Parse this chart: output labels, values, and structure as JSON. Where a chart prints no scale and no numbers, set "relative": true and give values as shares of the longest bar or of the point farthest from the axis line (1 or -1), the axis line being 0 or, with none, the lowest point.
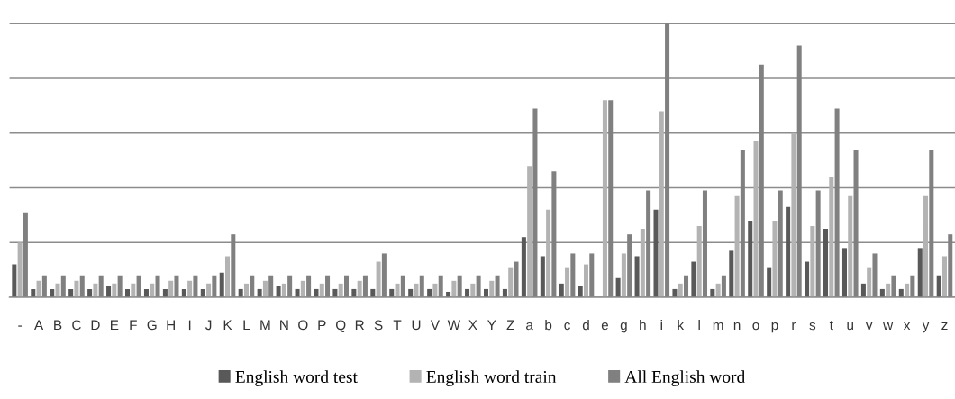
{
  "chart_data": {
    "type": "bar",
    "relative": true,
    "grid": "y",
    "legend": "bottom",
    "categories": [
      "-",
      "A",
      "B",
      "C",
      "D",
      "E",
      "F",
      "G",
      "H",
      "I",
      "J",
      "K",
      "L",
      "M",
      "N",
      "O",
      "P",
      "Q",
      "R",
      "S",
      "T",
      "U",
      "V",
      "W",
      "X",
      "Y",
      "Z",
      "a",
      "b",
      "c",
      "d",
      "e",
      "g",
      "h",
      "i",
      "k",
      "l",
      "m",
      "n",
      "o",
      "p",
      "r",
      "s",
      "t",
      "u",
      "v",
      "w",
      "x",
      "y",
      "z"
    ],
    "series": [
      {
        "name": "English word test",
        "color": "#595959",
        "values": [
          0.12,
          0.03,
          0.03,
          0.03,
          0.03,
          0.04,
          0.03,
          0.03,
          0.03,
          0.03,
          0.03,
          0.09,
          0.03,
          0.03,
          0.04,
          0.03,
          0.03,
          0.03,
          0.03,
          0.03,
          0.03,
          0.03,
          0.03,
          0.02,
          0.03,
          0.03,
          0.03,
          0.22,
          0.15,
          0.05,
          0.04,
          0,
          0.07,
          0.15,
          0.32,
          0.03,
          0.13,
          0.03,
          0.17,
          0.28,
          0.11,
          0.33,
          0.13,
          0.25,
          0.18,
          0.05,
          0.03,
          0.03,
          0.18,
          0.08
        ]
      },
      {
        "name": "English word train",
        "color": "#b3b3b3",
        "values": [
          0.2,
          0.06,
          0.05,
          0.06,
          0.05,
          0.05,
          0.05,
          0.05,
          0.06,
          0.06,
          0.05,
          0.15,
          0.05,
          0.06,
          0.05,
          0.06,
          0.05,
          0.05,
          0.06,
          0.13,
          0.05,
          0.05,
          0.05,
          0.06,
          0.05,
          0.06,
          0.11,
          0.48,
          0.32,
          0.11,
          0.12,
          0.72,
          0.16,
          0.25,
          0.68,
          0.05,
          0.26,
          0.05,
          0.37,
          0.57,
          0.28,
          0.6,
          0.26,
          0.44,
          0.37,
          0.11,
          0.05,
          0.05,
          0.37,
          0.15
        ]
      },
      {
        "name": "All English word",
        "color": "#808080",
        "values": [
          0.31,
          0.08,
          0.08,
          0.08,
          0.08,
          0.08,
          0.08,
          0.08,
          0.08,
          0.08,
          0.08,
          0.23,
          0.08,
          0.08,
          0.08,
          0.08,
          0.08,
          0.08,
          0.08,
          0.16,
          0.08,
          0.08,
          0.08,
          0.08,
          0.08,
          0.08,
          0.13,
          0.69,
          0.46,
          0.16,
          0.16,
          0.72,
          0.23,
          0.39,
          1,
          0.08,
          0.39,
          0.08,
          0.54,
          0.85,
          0.39,
          0.92,
          0.39,
          0.69,
          0.54,
          0.16,
          0.08,
          0.08,
          0.54,
          0.23
        ]
      }
    ]
  }
}
